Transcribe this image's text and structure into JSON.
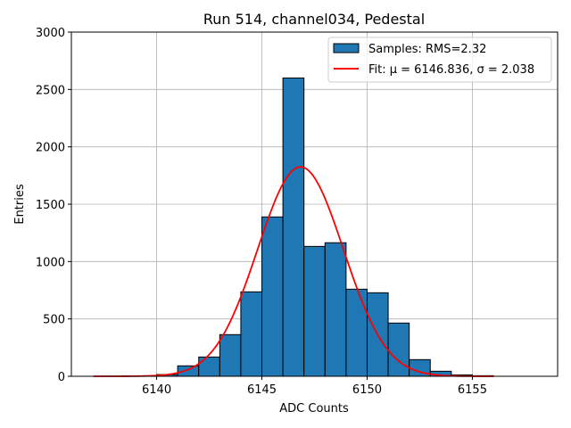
{
  "chart_data": {
    "type": "bar",
    "title": "Run 514, channel034, Pedestal",
    "xlabel": "ADC Counts",
    "ylabel": "Entries",
    "xlim": [
      6135.95,
      6159.05
    ],
    "ylim": [
      0,
      3000
    ],
    "xticks": [
      6140,
      6145,
      6150,
      6155
    ],
    "yticks": [
      0,
      500,
      1000,
      1500,
      2000,
      2500,
      3000
    ],
    "grid": true,
    "legend_position": "top-right",
    "histogram": {
      "name": "Samples: RMS=2.32",
      "color": "#1f77b4",
      "edgecolor": "#000000",
      "bin_edges": [
        6140,
        6141,
        6142,
        6143,
        6144,
        6145,
        6146,
        6147,
        6148,
        6149,
        6150,
        6151,
        6152,
        6153,
        6154,
        6155,
        6156
      ],
      "counts": [
        15,
        91,
        168,
        363,
        736,
        1389,
        2600,
        1132,
        1164,
        759,
        728,
        464,
        145,
        44,
        12,
        5
      ]
    },
    "fit": {
      "name": "Fit: μ = 6146.836, σ = 2.038",
      "color": "#ff0000",
      "type": "gaussian",
      "mu": 6146.836,
      "sigma": 2.038,
      "amplitude": 1825,
      "x_range": [
        6137,
        6156
      ]
    }
  }
}
